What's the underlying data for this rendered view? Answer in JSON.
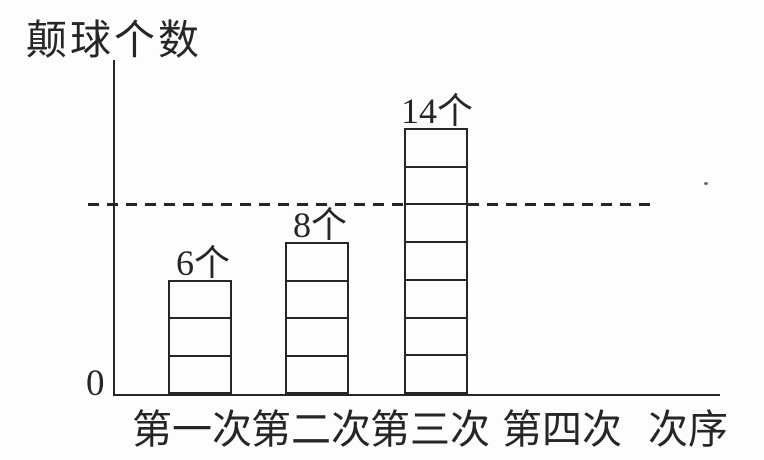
{
  "chart_data": {
    "type": "bar",
    "title": "",
    "ylabel": "颠球个数",
    "xlabel": "次序",
    "categories": [
      "第一次",
      "第二次",
      "第三次",
      "第四次"
    ],
    "values": [
      6,
      8,
      14,
      null
    ],
    "bar_labels": [
      "6个",
      "8个",
      "14个"
    ],
    "origin_label": "0",
    "units_per_segment": 2,
    "reference_line": {
      "value": 10,
      "style": "dashed"
    },
    "ylim": [
      0,
      17
    ],
    "grid": false,
    "legend": false,
    "bar_fill_color": "#fdfdfc",
    "ink_color": "#262626"
  }
}
